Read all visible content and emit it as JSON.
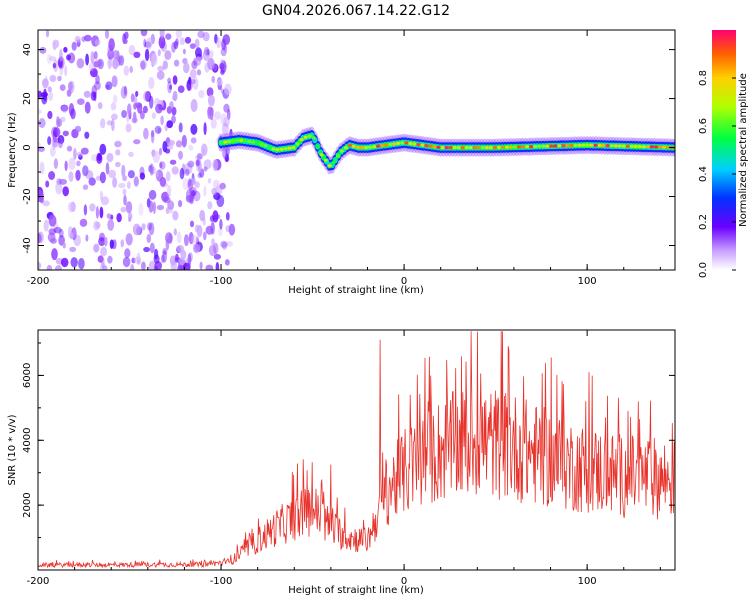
{
  "title": "GN04.2026.067.14.22.G12",
  "chart_data": [
    {
      "type": "heatmap",
      "title": "GN04.2026.067.14.22.G12",
      "xlabel": "Height of straight line (km)",
      "ylabel": "Frequency (Hz)",
      "xlim": [
        -200,
        148
      ],
      "ylim": [
        -50,
        48
      ],
      "xticks": [
        "-200",
        "-100",
        "0",
        "100"
      ],
      "yticks": [
        "40",
        "20",
        "0",
        "-20",
        "-40"
      ],
      "colorbar": {
        "label": "Normalized spectral amplitude",
        "range": [
          0,
          1
        ],
        "ticks": [
          "0.0",
          "0.2",
          "0.4",
          "0.6",
          "0.8"
        ]
      },
      "ridge": {
        "description": "dominant frequency track vs height",
        "x": [
          -100,
          -90,
          -80,
          -70,
          -60,
          -55,
          -50,
          -45,
          -40,
          -35,
          -30,
          -25,
          -20,
          -10,
          0,
          20,
          50,
          100,
          148
        ],
        "y": [
          2,
          3,
          2,
          -1,
          0,
          4,
          5,
          -3,
          -8,
          -2,
          1,
          0,
          0,
          1,
          2,
          0,
          0,
          1,
          0
        ]
      },
      "noise_region_x": [
        -200,
        -100
      ]
    },
    {
      "type": "line",
      "xlabel": "Height of straight line (km)",
      "ylabel": "SNR (10 * v/v)",
      "xlim": [
        -200,
        148
      ],
      "ylim": [
        0,
        7400
      ],
      "xticks": [
        "-200",
        "-100",
        "0",
        "100"
      ],
      "yticks": [
        "6000",
        "4000",
        "2000"
      ],
      "series": [
        {
          "name": "SNR",
          "color": "#e8312a",
          "envelope_x": [
            -200,
            -110,
            -95,
            -85,
            -70,
            -60,
            -50,
            -40,
            -30,
            -20,
            -10,
            0,
            20,
            40,
            60,
            80,
            100,
            120,
            148
          ],
          "envelope_mean": [
            150,
            170,
            250,
            700,
            1300,
            1600,
            1900,
            1300,
            1000,
            900,
            2400,
            3000,
            3700,
            4000,
            3800,
            3400,
            3100,
            2900,
            2800
          ],
          "peaks": [
            {
              "x": -40,
              "y": 3250
            },
            {
              "x": -13,
              "y": 7100
            },
            {
              "x": 40,
              "y": 7350
            },
            {
              "x": 57,
              "y": 6900
            }
          ]
        }
      ]
    }
  ]
}
